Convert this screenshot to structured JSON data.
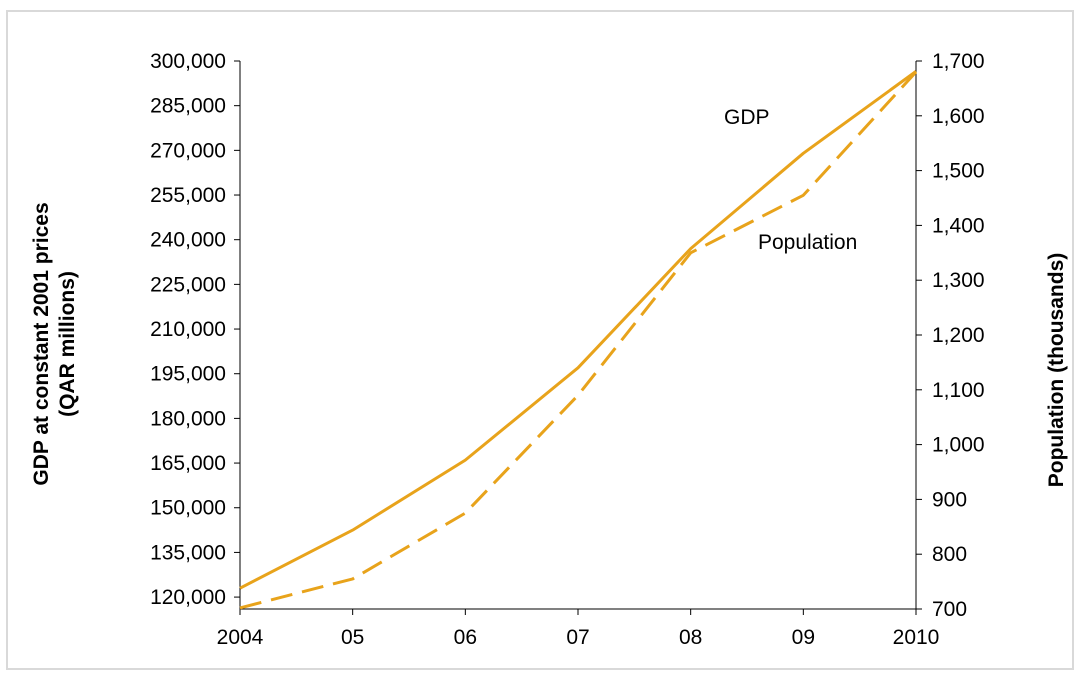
{
  "chart_data": {
    "type": "line",
    "categories": [
      "2004",
      "05",
      "06",
      "07",
      "08",
      "09",
      "2010"
    ],
    "left_axis": {
      "title_line1": "GDP at constant 2001 prices",
      "title_line2": "(QAR millions)",
      "ylim": [
        116000,
        300000
      ],
      "ticks": [
        120000,
        135000,
        150000,
        165000,
        180000,
        195000,
        210000,
        225000,
        240000,
        255000,
        270000,
        285000,
        300000
      ],
      "tick_labels": [
        "120,000",
        "135,000",
        "150,000",
        "165,000",
        "180,000",
        "195,000",
        "210,000",
        "225,000",
        "240,000",
        "255,000",
        "270,000",
        "285,000",
        "300,000"
      ]
    },
    "right_axis": {
      "title": "Population (thousands)",
      "ylim": [
        700,
        1700
      ],
      "ticks": [
        700,
        800,
        900,
        1000,
        1100,
        1200,
        1300,
        1400,
        1500,
        1600,
        1700
      ],
      "tick_labels": [
        "700",
        "800",
        "900",
        "1,000",
        "1,100",
        "1,200",
        "1,300",
        "1,400",
        "1,500",
        "1,600",
        "1,700"
      ]
    },
    "series": [
      {
        "name": "GDP",
        "axis": "left",
        "style": "solid",
        "values": [
          123000,
          142500,
          166000,
          197000,
          237000,
          269000,
          296500
        ]
      },
      {
        "name": "Population",
        "axis": "right",
        "style": "dashed",
        "values": [
          702,
          755,
          875,
          1090,
          1350,
          1455,
          1680
        ]
      }
    ],
    "line_color": "#e8a31b",
    "axis_color": "#000000",
    "grid": false,
    "legend": "inline labels"
  }
}
